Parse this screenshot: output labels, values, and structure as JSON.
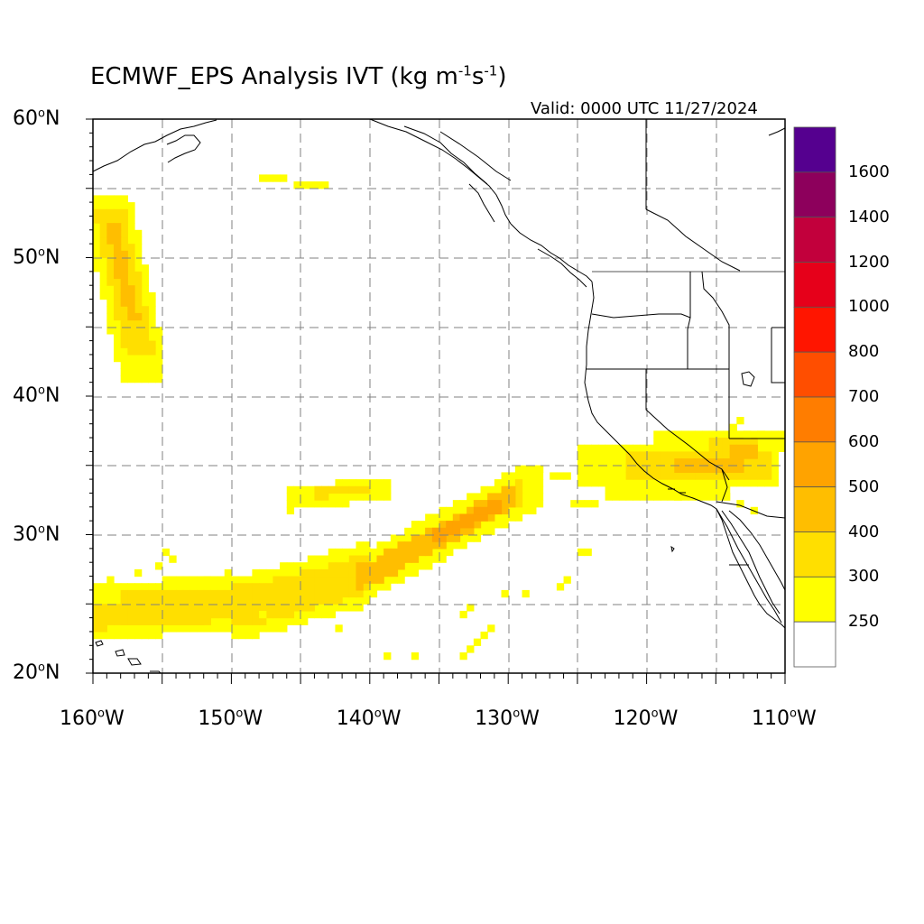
{
  "title": {
    "main": "ECMWF_EPS Analysis IVT (kg m",
    "sup1": "-1",
    "mid": "s",
    "sup2": "-1",
    "end": ")"
  },
  "valid_label": "Valid: 0000 UTC 11/27/2024",
  "map": {
    "projection": "cylindrical equidistant",
    "lon_range": [
      -160,
      -110
    ],
    "lat_range": [
      20,
      60
    ],
    "grid": "dashed every 5 degrees",
    "lat_ticks": [
      {
        "deg": "60",
        "hemi": "N"
      },
      {
        "deg": "50",
        "hemi": "N"
      },
      {
        "deg": "40",
        "hemi": "N"
      },
      {
        "deg": "30",
        "hemi": "N"
      },
      {
        "deg": "20",
        "hemi": "N"
      }
    ],
    "lon_ticks": [
      {
        "deg": "160",
        "hemi": "W"
      },
      {
        "deg": "150",
        "hemi": "W"
      },
      {
        "deg": "140",
        "hemi": "W"
      },
      {
        "deg": "130",
        "hemi": "W"
      },
      {
        "deg": "120",
        "hemi": "W"
      },
      {
        "deg": "110",
        "hemi": "W"
      }
    ],
    "features": [
      "Atmospheric river plume near 24N-34N from 160W to 128W, peak 400-500",
      "IVT band near 41N-54N, 160W-156W, peak 350-400",
      "IVT over Southern California and Nevada near 33N-38N, peak 400-500"
    ]
  },
  "colorbar": {
    "labels": [
      "1600",
      "1400",
      "1200",
      "1000",
      "800",
      "700",
      "600",
      "500",
      "400",
      "300",
      "250"
    ],
    "colors": [
      "#55008f",
      "#8d005c",
      "#c2003c",
      "#e6001a",
      "#ff1500",
      "#ff4e00",
      "#ff7d00",
      "#ffa300",
      "#ffbe00",
      "#ffdf00",
      "#ffff00",
      "#ffffff"
    ]
  },
  "colors": {
    "c250": "#ffff00",
    "c300": "#ffdf00",
    "c400": "#ffbe00",
    "c500": "#ffa300"
  }
}
